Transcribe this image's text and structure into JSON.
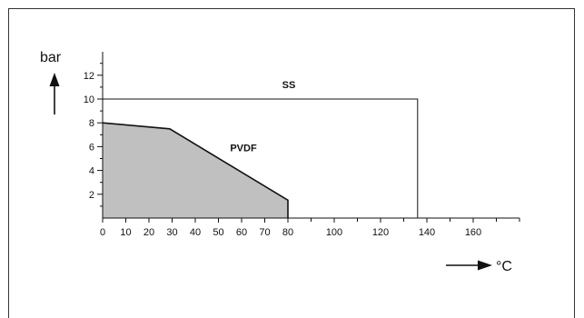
{
  "chart_data": {
    "type": "area",
    "title": "",
    "xlabel": "°C",
    "ylabel": "bar",
    "x_ticks": [
      0,
      10,
      20,
      30,
      40,
      50,
      60,
      70,
      80,
      100,
      120,
      140,
      160
    ],
    "y_ticks": [
      2,
      4,
      6,
      8,
      10,
      12
    ],
    "xlim": [
      0,
      180
    ],
    "ylim": [
      0,
      14
    ],
    "grid": false,
    "series": [
      {
        "name": "SS",
        "style": "outline",
        "color": "#111111",
        "points": [
          [
            0,
            10
          ],
          [
            136,
            10
          ],
          [
            136,
            0
          ]
        ]
      },
      {
        "name": "PVDF",
        "style": "filled",
        "fill": "#c0c0c0",
        "color": "#111111",
        "points": [
          [
            0,
            8
          ],
          [
            29,
            7.5
          ],
          [
            80,
            1.5
          ],
          [
            80,
            0
          ]
        ]
      }
    ]
  }
}
